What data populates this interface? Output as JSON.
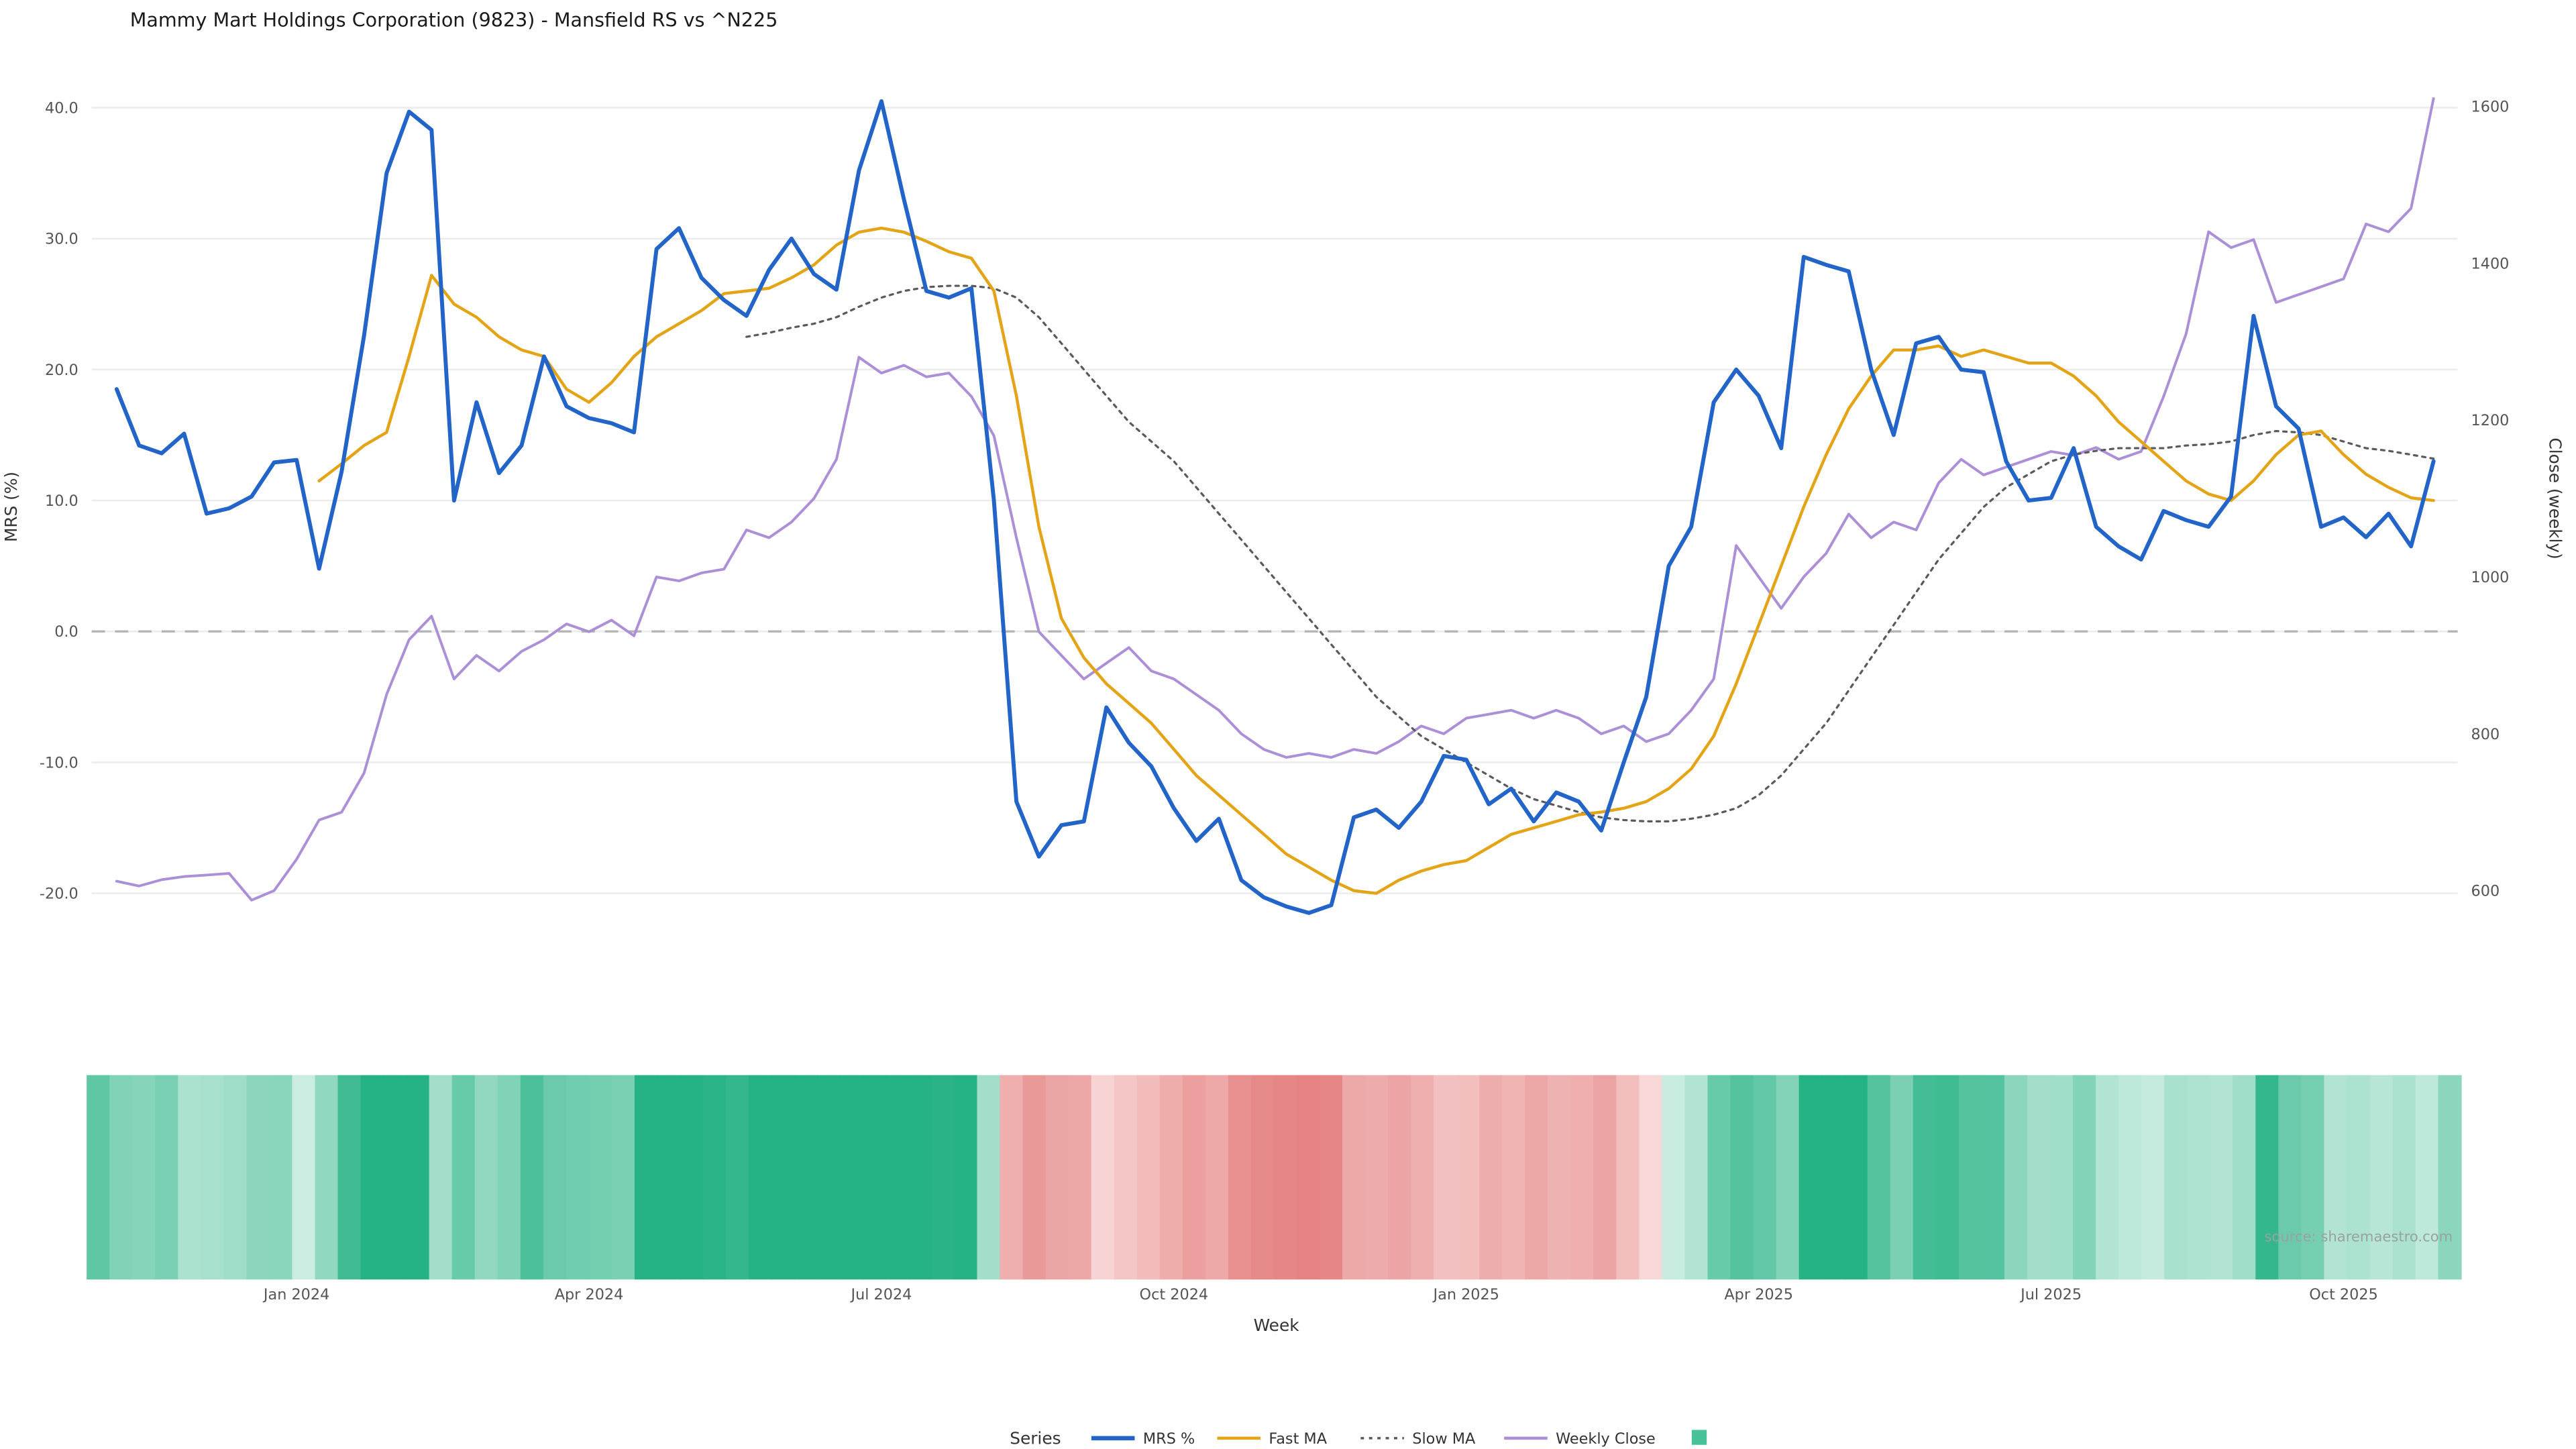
{
  "title": "Mammy Mart Holdings Corporation (9823) - Mansfield RS vs ^N225",
  "source": "source: sharemaestro.com",
  "axes": {
    "left_label": "MRS (%)",
    "right_label": "Close (weekly)",
    "x_label": "Week",
    "left_ticks": [
      40,
      30,
      20,
      10,
      0,
      -10,
      -20
    ],
    "right_ticks": [
      1600,
      1400,
      1200,
      1000,
      800,
      600
    ],
    "x_tick_labels": [
      "Jan 2024",
      "Apr 2024",
      "Jul 2024",
      "Oct 2024",
      "Jan 2025",
      "Apr 2025",
      "Jul 2025",
      "Oct 2025"
    ],
    "x_tick_indices": [
      8,
      21,
      34,
      47,
      60,
      73,
      86,
      99
    ]
  },
  "legend": {
    "title": "Series",
    "entries": [
      {
        "label": "MRS %",
        "color": "#2264c8",
        "style": "solid",
        "width": 2.6
      },
      {
        "label": "Fast MA",
        "color": "#e3a417",
        "style": "solid",
        "width": 1.8
      },
      {
        "label": "Slow MA",
        "color": "#5a5a5a",
        "style": "dotted",
        "width": 1.4
      },
      {
        "label": "Weekly Close",
        "color": "#ab90d8",
        "style": "solid",
        "width": 1.8
      },
      {
        "label": "",
        "color": "#47c198",
        "style": "square",
        "width": 0
      }
    ]
  },
  "chart_data": {
    "type": "line",
    "x_axis": "weekly, Nov 2023 - Nov 2025, 104 weekly points",
    "left_ylim": [
      -26.5,
      42
    ],
    "right_ylim": [
      600,
      1600
    ],
    "zero_line": 0,
    "grid": true,
    "legend_position": "bottom-center",
    "heatmap": {
      "encodes": "MRS %",
      "positive_color": "#25b284",
      "positive_light": "#f0faf6",
      "negative_color": "#e06c6c",
      "negative_light": "#fdf1f0",
      "max_abs": 26
    },
    "series": [
      {
        "name": "MRS %",
        "axis": "left",
        "color": "#2264c8",
        "width": 2.4,
        "dash": null,
        "values": [
          18.5,
          14.2,
          13.6,
          15.1,
          9.0,
          9.4,
          10.3,
          12.9,
          13.1,
          4.8,
          12.2,
          22.6,
          35.0,
          39.7,
          38.3,
          10.0,
          17.5,
          12.1,
          14.2,
          21.0,
          17.2,
          16.3,
          15.9,
          15.2,
          29.2,
          30.8,
          27.0,
          25.3,
          24.1,
          27.6,
          30.0,
          27.3,
          26.1,
          35.2,
          40.5,
          33.0,
          26.0,
          25.5,
          26.2,
          10.0,
          -13.0,
          -17.2,
          -14.8,
          -14.5,
          -5.8,
          -8.5,
          -10.3,
          -13.5,
          -16.0,
          -14.3,
          -19.0,
          -20.3,
          -21.0,
          -21.5,
          -20.9,
          -14.2,
          -13.6,
          -15.0,
          -13.0,
          -9.5,
          -9.8,
          -13.2,
          -12.0,
          -14.5,
          -12.3,
          -13.0,
          -15.2,
          -10.0,
          -5.0,
          5.0,
          8.0,
          17.5,
          20.0,
          18.0,
          14.0,
          28.6,
          28.0,
          27.5,
          20.0,
          15.0,
          22.0,
          22.5,
          20.0,
          19.8,
          13.0,
          10.0,
          10.2,
          14.0,
          8.0,
          6.5,
          5.5,
          9.2,
          8.5,
          8.0,
          10.3,
          24.1,
          17.2,
          15.5,
          8.0,
          8.7,
          7.2,
          9.0,
          6.5,
          13.0
        ]
      },
      {
        "name": "Fast MA",
        "axis": "left",
        "color": "#e3a417",
        "width": 1.8,
        "dash": null,
        "values": [
          null,
          null,
          null,
          null,
          null,
          null,
          null,
          null,
          null,
          11.5,
          12.8,
          14.2,
          15.2,
          21.0,
          27.2,
          25.0,
          24.0,
          22.5,
          21.5,
          21.0,
          18.5,
          17.5,
          19.0,
          21.0,
          22.5,
          23.5,
          24.5,
          25.8,
          26.0,
          26.2,
          27.0,
          28.0,
          29.5,
          30.5,
          30.8,
          30.5,
          29.8,
          29.0,
          28.5,
          26.0,
          18.0,
          8.0,
          1.0,
          -2.0,
          -4.0,
          -5.5,
          -7.0,
          -9.0,
          -11.0,
          -12.5,
          -14.0,
          -15.5,
          -17.0,
          -18.0,
          -19.0,
          -19.8,
          -20.0,
          -19.0,
          -18.3,
          -17.8,
          -17.5,
          -16.5,
          -15.5,
          -15.0,
          -14.5,
          -14.0,
          -13.8,
          -13.5,
          -13.0,
          -12.0,
          -10.5,
          -8.0,
          -4.0,
          0.5,
          5.0,
          9.5,
          13.5,
          17.0,
          19.5,
          21.5,
          21.5,
          21.8,
          21.0,
          21.5,
          21.0,
          20.5,
          20.5,
          19.5,
          18.0,
          16.0,
          14.5,
          13.0,
          11.5,
          10.5,
          10.0,
          11.5,
          13.5,
          15.0,
          15.3,
          13.5,
          12.0,
          11.0,
          10.2,
          10.0
        ]
      },
      {
        "name": "Slow MA",
        "axis": "left",
        "color": "#5a5a5a",
        "width": 1.3,
        "dash": "2 3",
        "values": [
          null,
          null,
          null,
          null,
          null,
          null,
          null,
          null,
          null,
          null,
          null,
          null,
          null,
          null,
          null,
          null,
          null,
          null,
          null,
          null,
          null,
          null,
          null,
          null,
          null,
          null,
          null,
          null,
          22.5,
          22.8,
          23.2,
          23.5,
          24.0,
          24.8,
          25.5,
          26.0,
          26.3,
          26.4,
          26.4,
          26.2,
          25.5,
          24.0,
          22.0,
          20.0,
          18.0,
          16.0,
          14.5,
          13.0,
          11.0,
          9.0,
          7.0,
          5.0,
          3.0,
          1.0,
          -1.0,
          -3.0,
          -5.0,
          -6.5,
          -8.0,
          -9.0,
          -10.0,
          -11.0,
          -12.0,
          -12.8,
          -13.3,
          -13.8,
          -14.2,
          -14.4,
          -14.5,
          -14.5,
          -14.3,
          -14.0,
          -13.5,
          -12.5,
          -11.0,
          -9.0,
          -7.0,
          -4.5,
          -2.0,
          0.5,
          3.0,
          5.5,
          7.5,
          9.5,
          11.0,
          12.0,
          13.0,
          13.5,
          13.8,
          14.0,
          14.0,
          14.0,
          14.2,
          14.3,
          14.5,
          15.0,
          15.3,
          15.2,
          15.0,
          14.5,
          14.0,
          13.8,
          13.5,
          13.2
        ]
      },
      {
        "name": "Weekly Close",
        "axis": "right",
        "color": "#ab90d8",
        "width": 1.6,
        "dash": null,
        "values": [
          612,
          606,
          614,
          618,
          620,
          622,
          588,
          600,
          640,
          690,
          700,
          750,
          850,
          920,
          950,
          870,
          900,
          880,
          905,
          920,
          940,
          930,
          945,
          925,
          1000,
          995,
          1005,
          1010,
          1060,
          1050,
          1070,
          1100,
          1150,
          1280,
          1260,
          1270,
          1255,
          1260,
          1230,
          1180,
          1050,
          930,
          900,
          870,
          890,
          910,
          880,
          870,
          850,
          830,
          800,
          780,
          770,
          775,
          770,
          780,
          775,
          790,
          810,
          800,
          820,
          825,
          830,
          820,
          830,
          820,
          800,
          810,
          790,
          800,
          830,
          870,
          1040,
          1000,
          960,
          1000,
          1030,
          1080,
          1050,
          1070,
          1060,
          1120,
          1150,
          1130,
          1140,
          1150,
          1160,
          1155,
          1165,
          1150,
          1160,
          1230,
          1310,
          1440,
          1420,
          1430,
          1350,
          1360,
          1370,
          1380,
          1450,
          1440,
          1470,
          1610
        ]
      }
    ]
  }
}
